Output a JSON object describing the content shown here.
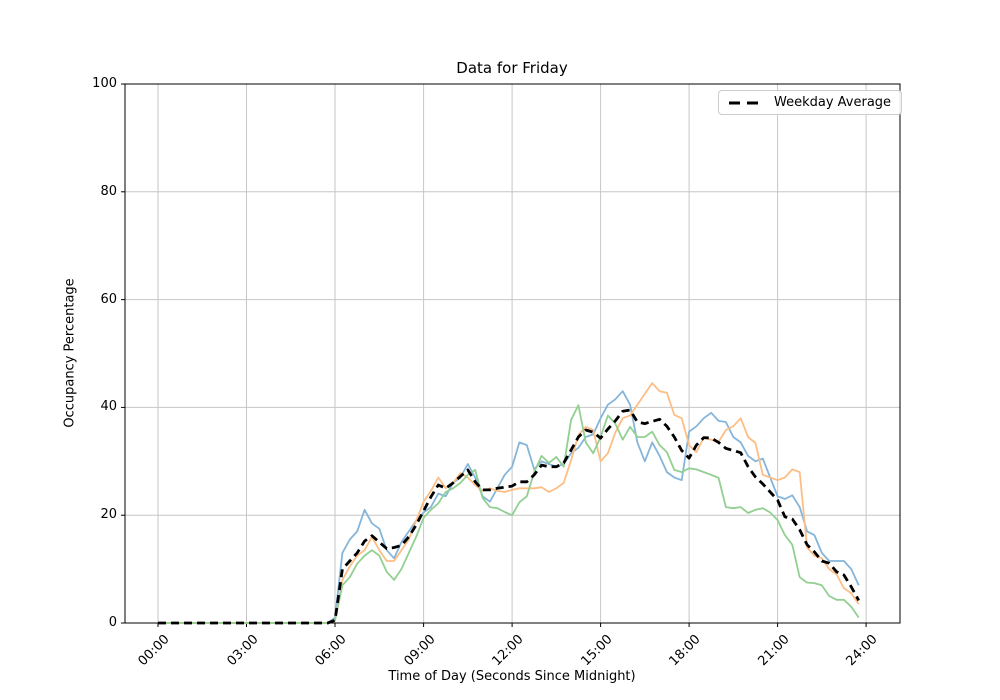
{
  "figure": {
    "title": "Data for Friday",
    "xlabel": "Time of Day (Seconds Since Midnight)",
    "ylabel": "Occupancy Percentage",
    "legend_label": "Weekday Average"
  },
  "colors": {
    "blue_line": "#85b5da",
    "orange_line": "#fdbe85",
    "green_line": "#92d092",
    "average_line": "#000000",
    "grid": "#c6c6c6",
    "spine": "#000000",
    "legend_border": "#cccccc"
  },
  "chart_data": {
    "type": "line",
    "title": "Data for Friday",
    "xlabel": "Time of Day (Seconds Since Midnight)",
    "ylabel": "Occupancy Percentage",
    "grid": true,
    "legend_position": "upper right",
    "ylim": [
      0,
      100
    ],
    "xlim_hours": [
      -1.12,
      25.15
    ],
    "x_start_hour": 0,
    "x_step_minutes": 15,
    "yticks": [
      0,
      20,
      40,
      60,
      80,
      100
    ],
    "xticks": {
      "hours": [
        0,
        3,
        6,
        9,
        12,
        15,
        18,
        21,
        24
      ],
      "labels": [
        "00:00",
        "03:00",
        "06:00",
        "09:00",
        "12:00",
        "15:00",
        "18:00",
        "21:00",
        "24:00"
      ]
    },
    "series": [
      {
        "name": "friday-blue",
        "color": "#85b5da",
        "style": "solid",
        "in_legend": false,
        "values": [
          0,
          0,
          0,
          0,
          0,
          0,
          0,
          0,
          0,
          0,
          0,
          0,
          0,
          0,
          0,
          0,
          0,
          0,
          0,
          0,
          0,
          0,
          0,
          0,
          1,
          13,
          15.5,
          17,
          21,
          18.5,
          17.5,
          13.5,
          12,
          15,
          17,
          19,
          20.5,
          21.5,
          24,
          23.5,
          26,
          27,
          29.5,
          27,
          23.5,
          22.5,
          25,
          27.5,
          29,
          33.5,
          33,
          28.5,
          30,
          29.5,
          29,
          29.5,
          31.5,
          32.5,
          34.5,
          35,
          38,
          40.5,
          41.5,
          43,
          40.5,
          33.5,
          30,
          33.5,
          31,
          28,
          27,
          26.5,
          35.5,
          36.5,
          38,
          39,
          37.5,
          37.3,
          34.5,
          33.5,
          31,
          30,
          30.5,
          27,
          23.5,
          23,
          23.7,
          21.5,
          17,
          16.3,
          13,
          11.5,
          11.5,
          11.5,
          10,
          7
        ]
      },
      {
        "name": "friday-orange",
        "color": "#fdbe85",
        "style": "solid",
        "in_legend": false,
        "values": [
          0,
          0,
          0,
          0,
          0,
          0,
          0,
          0,
          0,
          0,
          0,
          0,
          0,
          0,
          0,
          0,
          0,
          0,
          0,
          0,
          0,
          0,
          0,
          0,
          0.5,
          8,
          10.5,
          12.5,
          13.5,
          16,
          13.5,
          11.5,
          11.5,
          13.5,
          15.5,
          19,
          22.5,
          24.5,
          27,
          25,
          26,
          27.8,
          27,
          25.6,
          24.5,
          25,
          24.5,
          24.3,
          24.7,
          25,
          25,
          25,
          25.2,
          24.3,
          25,
          26,
          30.2,
          34.9,
          36.4,
          35.8,
          30,
          31.5,
          35.3,
          38,
          38.5,
          40.5,
          42.5,
          44.5,
          43,
          42.7,
          38.6,
          38,
          33,
          31.7,
          34.4,
          34,
          33.6,
          35.8,
          36.5,
          38,
          34.5,
          33.4,
          27.5,
          27,
          26.5,
          27,
          28.5,
          28,
          14,
          12.5,
          12,
          10,
          9,
          6.5,
          5.5,
          3.5
        ]
      },
      {
        "name": "friday-green",
        "color": "#92d092",
        "style": "solid",
        "in_legend": false,
        "values": [
          0,
          0,
          0,
          0,
          0,
          0,
          0,
          0,
          0,
          0,
          0,
          0,
          0,
          0,
          0,
          0,
          0,
          0,
          0,
          0,
          0,
          0,
          0,
          0,
          0.5,
          7,
          8.5,
          11,
          12.5,
          13.5,
          12.5,
          9.5,
          8,
          10,
          13,
          16,
          19.5,
          21,
          22.2,
          24.3,
          25,
          26,
          27.5,
          28.4,
          23.2,
          21.5,
          21.3,
          20.6,
          20,
          22.4,
          23.5,
          28,
          31,
          29.7,
          30.8,
          29,
          37.7,
          40.4,
          33.5,
          31.5,
          34.5,
          38.5,
          37,
          34,
          36.4,
          34.5,
          34.5,
          35.5,
          33,
          31.7,
          28.4,
          28,
          28.7,
          28.5,
          28,
          27.5,
          26.9,
          21.5,
          21.3,
          21.5,
          20.4,
          21,
          21.3,
          20.5,
          19.1,
          16.3,
          14.5,
          8.5,
          7.5,
          7.4,
          7,
          5,
          4.3,
          4.3,
          3,
          1
        ]
      },
      {
        "name": "Weekday Average",
        "color": "#000000",
        "style": "dashed",
        "in_legend": true,
        "values": [
          0,
          0,
          0,
          0,
          0,
          0,
          0,
          0,
          0,
          0,
          0,
          0,
          0,
          0,
          0,
          0,
          0,
          0,
          0,
          0,
          0,
          0,
          0,
          0,
          0.5,
          10,
          11.5,
          13,
          15.2,
          16.2,
          15,
          13.8,
          14,
          14.4,
          16,
          18.2,
          20.8,
          23.4,
          25.6,
          25,
          26,
          27.2,
          28.4,
          26.2,
          24.7,
          24.7,
          25,
          25.2,
          25.4,
          26.2,
          26.2,
          27.5,
          29.3,
          29,
          29,
          29.7,
          32.1,
          34.5,
          35.8,
          35.4,
          34.3,
          36,
          37.5,
          39.3,
          39.5,
          37.3,
          37,
          37.4,
          37.8,
          36.5,
          34.5,
          32,
          30.6,
          33,
          34.4,
          34.3,
          33.5,
          32.4,
          32,
          31.6,
          29,
          27.1,
          25.8,
          24.3,
          22.8,
          19.7,
          19.3,
          17.3,
          14.5,
          13.2,
          11.5,
          11.1,
          9.5,
          8.9,
          6.7,
          4.2
        ]
      }
    ]
  }
}
